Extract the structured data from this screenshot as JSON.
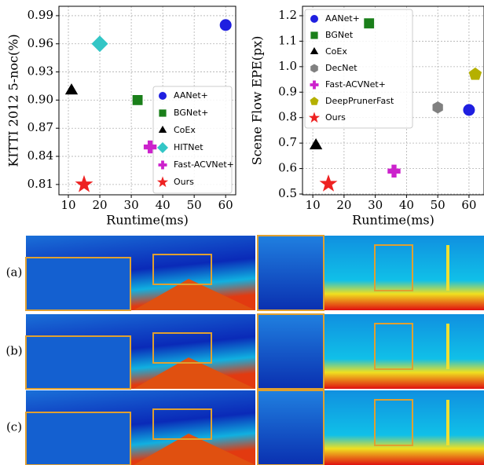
{
  "chart_data": [
    {
      "type": "scatter",
      "xlabel": "Runtime(ms)",
      "ylabel": "KITTI 2012 5-noc(%)",
      "xlim": [
        7,
        63.2
      ],
      "ylim": [
        0.799,
        1.0
      ],
      "xticks": [
        10,
        20,
        30,
        40,
        50,
        60
      ],
      "yticks": [
        0.81,
        0.84,
        0.87,
        {
          "value": 0.9,
          "label": "0.90"
        },
        0.93,
        0.96,
        0.99
      ],
      "grid": true,
      "legend": "lower right",
      "series": [
        {
          "name": "AANet+",
          "color": "#1f1fe0",
          "marker": "circle",
          "x": [
            60
          ],
          "values": [
            0.98
          ]
        },
        {
          "name": "BGNet+",
          "color": "#1a7f1a",
          "marker": "square",
          "x": [
            32
          ],
          "values": [
            0.9
          ]
        },
        {
          "name": "CoEx",
          "color": "#000000",
          "marker": "triangle",
          "x": [
            11
          ],
          "values": [
            0.91
          ]
        },
        {
          "name": "HITNet",
          "color": "#33c6c6",
          "marker": "diamond",
          "x": [
            20
          ],
          "values": [
            0.96
          ]
        },
        {
          "name": "Fast-ACVNet+",
          "color": "#cc22cc",
          "marker": "plus",
          "x": [
            36
          ],
          "values": [
            0.85
          ]
        },
        {
          "name": "Ours",
          "color": "#ee2222",
          "marker": "star",
          "x": [
            15
          ],
          "values": [
            0.81
          ]
        }
      ]
    },
    {
      "type": "scatter",
      "xlabel": "Runtime(ms)",
      "ylabel": "Scene Flow EPE(px)",
      "xlim": [
        6.7,
        64.8
      ],
      "ylim": [
        0.497,
        1.237
      ],
      "xticks": [
        10,
        20,
        30,
        40,
        50,
        60
      ],
      "yticks": [
        0.5,
        0.6,
        0.7,
        0.8,
        0.9,
        {
          "value": 1,
          "label": "1.0"
        },
        1.1,
        1.2
      ],
      "grid": true,
      "legend": "upper left",
      "series": [
        {
          "name": "AANet+",
          "color": "#1f1fe0",
          "marker": "circle",
          "x": [
            60
          ],
          "values": [
            0.83
          ]
        },
        {
          "name": "BGNet",
          "color": "#1a7f1a",
          "marker": "square",
          "x": [
            28
          ],
          "values": [
            1.17
          ]
        },
        {
          "name": "CoEx",
          "color": "#000000",
          "marker": "triangle",
          "x": [
            11
          ],
          "values": [
            0.69
          ]
        },
        {
          "name": "DecNet",
          "color": "#808080",
          "marker": "hexagon",
          "x": [
            50
          ],
          "values": [
            0.84
          ]
        },
        {
          "name": "Fast-ACVNet+",
          "color": "#cc22cc",
          "marker": "plus",
          "x": [
            36
          ],
          "values": [
            0.59
          ]
        },
        {
          "name": "DeepPrunerFast",
          "color": "#b5b000",
          "marker": "pentagon",
          "x": [
            62
          ],
          "values": [
            0.97
          ]
        },
        {
          "name": "Ours",
          "color": "#ee2222",
          "marker": "star",
          "x": [
            15
          ],
          "values": [
            0.54
          ]
        }
      ]
    }
  ],
  "image_rows": [
    "(a)",
    "(b)",
    "(c)"
  ]
}
